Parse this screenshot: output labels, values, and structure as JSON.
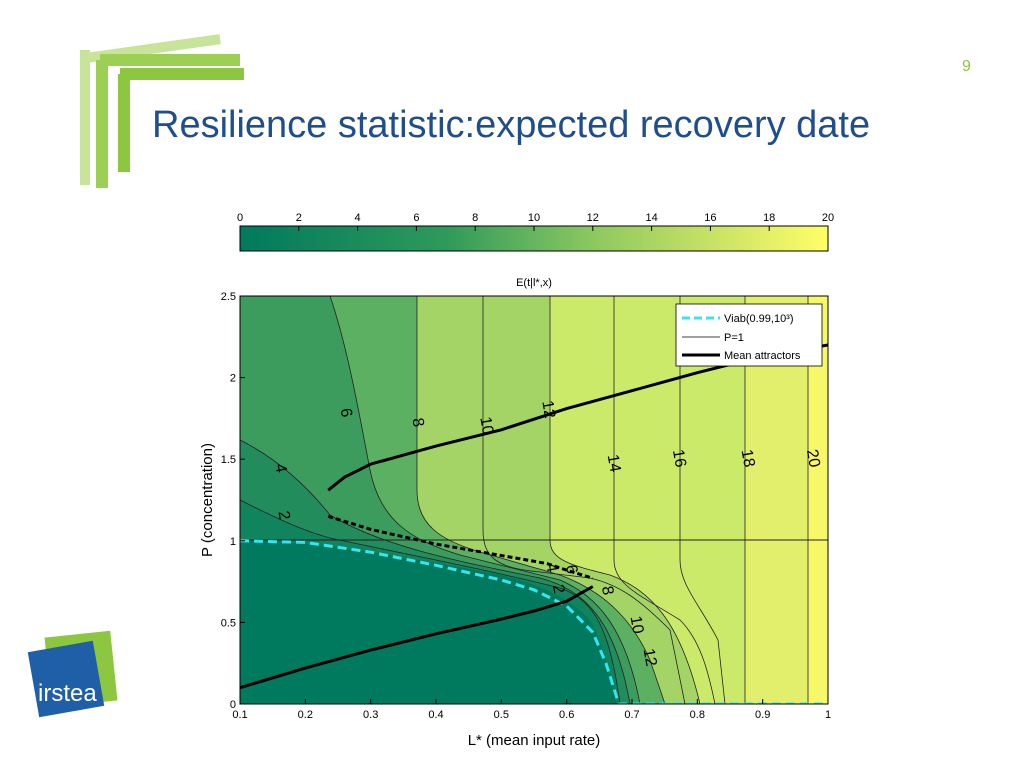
{
  "slide": {
    "number": "9",
    "title": "Resilience statistic:expected recovery date",
    "logo_text": "irstea"
  },
  "colors": {
    "title": "#1f4e8c",
    "accent_green": "#8dc63f",
    "logo_blue": "#1f5fa8",
    "colormap_low": "#007a5e",
    "colormap_high": "#ffff66",
    "viab_line": "#33e6f0"
  },
  "chart_data": {
    "type": "contour",
    "colorbar": {
      "ticks": [
        "0",
        "2",
        "4",
        "6",
        "8",
        "10",
        "12",
        "14",
        "16",
        "18",
        "20"
      ],
      "range": [
        0,
        20
      ],
      "label": "E(t|l*,x)"
    },
    "xlabel": "L* (mean input rate)",
    "ylabel": "P (concentration)",
    "xlim": [
      0.1,
      1.0
    ],
    "ylim": [
      0,
      2.5
    ],
    "xticks": [
      "0.1",
      "0.2",
      "0.3",
      "0.4",
      "0.5",
      "0.6",
      "0.7",
      "0.8",
      "0.9",
      "1"
    ],
    "yticks": [
      "0",
      "0.5",
      "1",
      "1.5",
      "2",
      "2.5"
    ],
    "legend": {
      "placement": "top-right",
      "entries": [
        "Viab(0.99,10³)",
        "P=1",
        "Mean attractors"
      ]
    },
    "contour_labels": [
      {
        "text": "2",
        "x": 0.16,
        "y": 1.15
      },
      {
        "text": "4",
        "x": 0.155,
        "y": 1.44
      },
      {
        "text": "6",
        "x": 0.255,
        "y": 1.78
      },
      {
        "text": "8",
        "x": 0.365,
        "y": 1.72
      },
      {
        "text": "10",
        "x": 0.47,
        "y": 1.7
      },
      {
        "text": "12",
        "x": 0.565,
        "y": 1.8
      },
      {
        "text": "14",
        "x": 0.665,
        "y": 1.47
      },
      {
        "text": "16",
        "x": 0.765,
        "y": 1.5
      },
      {
        "text": "18",
        "x": 0.87,
        "y": 1.5
      },
      {
        "text": "20",
        "x": 0.97,
        "y": 1.5
      },
      {
        "text": "4",
        "x": 0.57,
        "y": 0.83
      },
      {
        "text": "6",
        "x": 0.6,
        "y": 0.82
      },
      {
        "text": "2",
        "x": 0.58,
        "y": 0.7
      },
      {
        "text": "8",
        "x": 0.655,
        "y": 0.69
      },
      {
        "text": "10",
        "x": 0.7,
        "y": 0.48
      },
      {
        "text": "12",
        "x": 0.72,
        "y": 0.28
      }
    ],
    "viab_boundary": [
      [
        0.1,
        1.0
      ],
      [
        0.2,
        0.99
      ],
      [
        0.3,
        0.93
      ],
      [
        0.4,
        0.85
      ],
      [
        0.5,
        0.76
      ],
      [
        0.55,
        0.7
      ],
      [
        0.6,
        0.6
      ],
      [
        0.64,
        0.44
      ],
      [
        0.66,
        0.25
      ],
      [
        0.68,
        0.0
      ],
      [
        1.0,
        0.0
      ]
    ],
    "mean_attractor_lower": [
      [
        0.1,
        0.1
      ],
      [
        0.2,
        0.22
      ],
      [
        0.3,
        0.33
      ],
      [
        0.4,
        0.43
      ],
      [
        0.5,
        0.52
      ],
      [
        0.55,
        0.57
      ],
      [
        0.6,
        0.63
      ],
      [
        0.64,
        0.72
      ]
    ],
    "mean_attractor_upper": [
      [
        0.235,
        1.31
      ],
      [
        0.26,
        1.39
      ],
      [
        0.3,
        1.47
      ],
      [
        0.4,
        1.58
      ],
      [
        0.5,
        1.68
      ],
      [
        0.6,
        1.81
      ],
      [
        0.7,
        1.92
      ],
      [
        0.8,
        2.03
      ],
      [
        0.9,
        2.13
      ],
      [
        1.0,
        2.2
      ]
    ],
    "mean_attractor_dashed": [
      [
        0.235,
        1.15
      ],
      [
        0.3,
        1.07
      ],
      [
        0.4,
        0.98
      ],
      [
        0.5,
        0.91
      ],
      [
        0.57,
        0.86
      ],
      [
        0.6,
        0.82
      ],
      [
        0.64,
        0.77
      ]
    ]
  }
}
